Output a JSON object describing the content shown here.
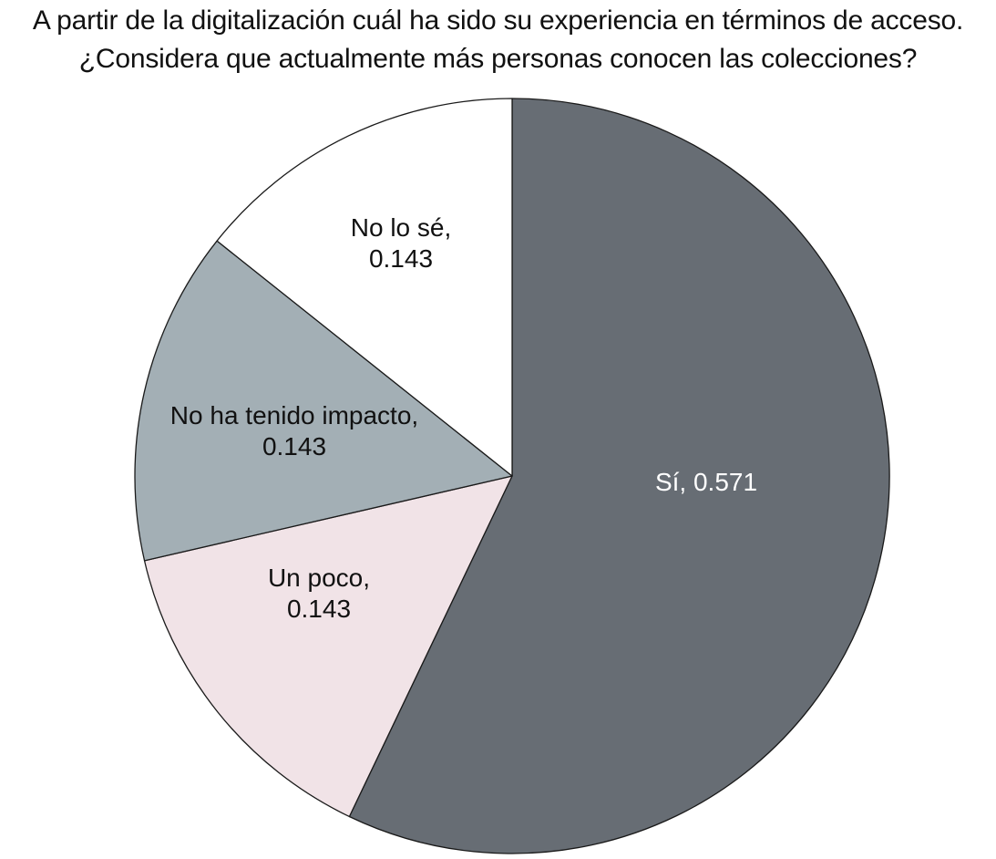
{
  "chart_data": {
    "type": "pie",
    "title": [
      "A partir de la digitalización cuál ha sido su experiencia en términos de acceso.",
      "¿Considera que actualmente más personas conocen las colecciones?"
    ],
    "slices": [
      {
        "label": "Sí",
        "value": 0.571,
        "value_text": "0.571",
        "color": "#676d74",
        "text_color": "#ffffff",
        "text_lines": [
          "Sí, 0.571"
        ]
      },
      {
        "label": "Un poco",
        "value": 0.143,
        "value_text": "0.143",
        "color": "#f1e3e7",
        "text_color": "#111111",
        "text_lines": [
          "Un poco,",
          "0.143"
        ]
      },
      {
        "label": "No ha tenido impacto",
        "value": 0.143,
        "value_text": "0.143",
        "color": "#a3afb5",
        "text_color": "#111111",
        "text_lines": [
          "No ha tenido impacto,",
          "0.143"
        ]
      },
      {
        "label": "No lo sé",
        "value": 0.143,
        "value_text": "0.143",
        "color": "#ffffff",
        "text_color": "#111111",
        "text_lines": [
          "No lo sé,",
          "0.143"
        ]
      }
    ],
    "legend": "none",
    "labels_inside": true
  }
}
